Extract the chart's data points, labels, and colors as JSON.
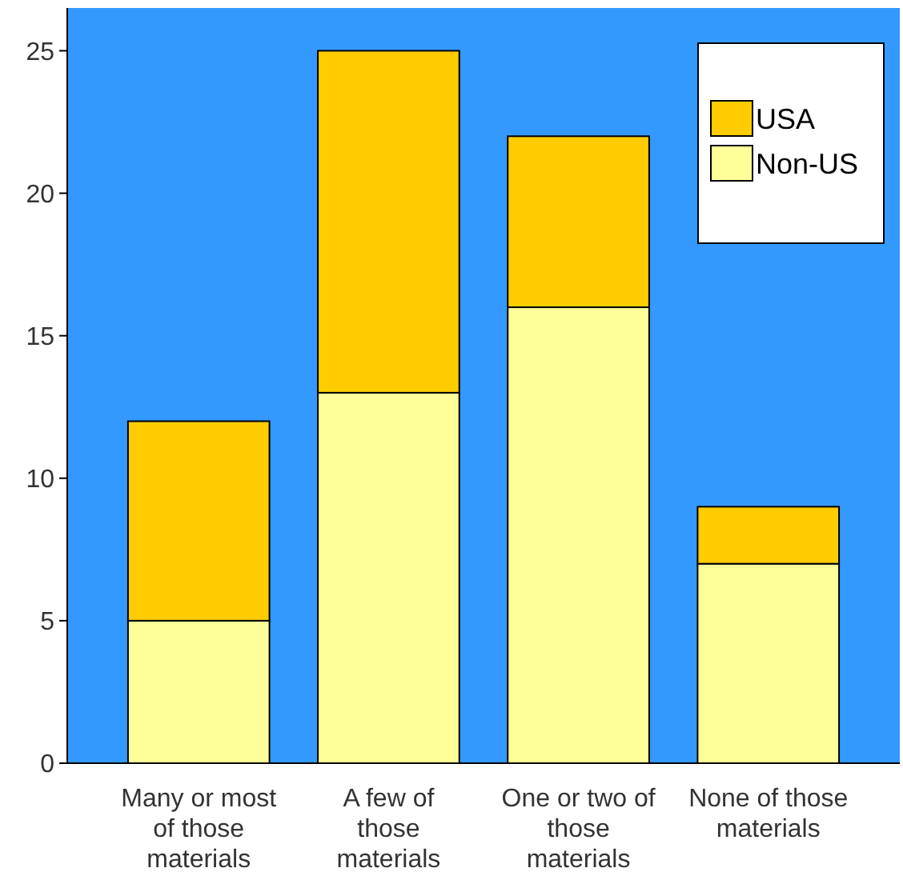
{
  "chart_data": {
    "type": "bar",
    "stacked": true,
    "categories": [
      "Many or most of those materials",
      "A few of those materials",
      "One or two of those materials",
      "None of those materials"
    ],
    "series": [
      {
        "name": "Non-US",
        "color": "#ffff99",
        "values": [
          5,
          13,
          16,
          7
        ]
      },
      {
        "name": "USA",
        "color": "#ffcc00",
        "values": [
          7,
          12,
          6,
          2
        ]
      }
    ],
    "ylim": [
      0,
      26.5
    ],
    "yticks": [
      0,
      5,
      10,
      15,
      20,
      25
    ],
    "grid": false,
    "legend": "top right"
  }
}
